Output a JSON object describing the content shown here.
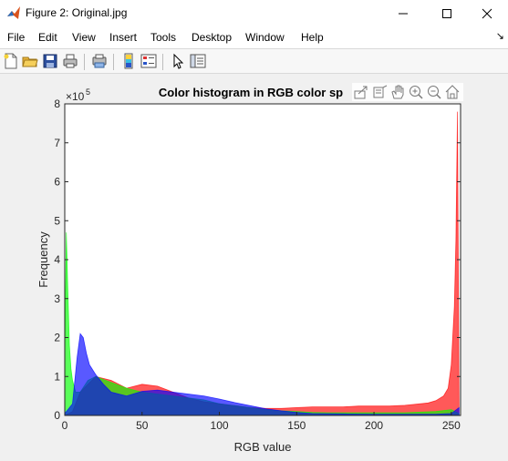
{
  "window": {
    "title": "Figure 2: Original.jpg"
  },
  "menu": [
    "File",
    "Edit",
    "View",
    "Insert",
    "Tools",
    "Desktop",
    "Window",
    "Help"
  ],
  "toolbar_icons": [
    "new-figure-icon",
    "open-file-icon",
    "save-icon",
    "print-icon",
    "print-preview-icon",
    "link-plot-icon",
    "insert-colorbar-icon",
    "insert-legend-icon",
    "edit-plot-icon",
    "property-inspector-icon"
  ],
  "axes_toolbar_icons": [
    "export-icon",
    "brush-icon",
    "pan-icon",
    "zoom-in-icon",
    "zoom-out-icon",
    "home-icon"
  ],
  "colors": {
    "red": "#ff0000",
    "green": "#00ff00",
    "blue": "#0000ff",
    "overlay_alpha": 0.5
  },
  "chart_data": {
    "type": "area",
    "title": "Color histogram in RGB color sp",
    "xlabel": "RGB value",
    "ylabel": "Frequency",
    "exponent_label": "×10",
    "exponent_power": "5",
    "xlim": [
      0,
      256
    ],
    "ylim": [
      0,
      8
    ],
    "xticks": [
      "0",
      "50",
      "100",
      "150",
      "200",
      "250"
    ],
    "yticks": [
      "0",
      "1",
      "2",
      "3",
      "4",
      "5",
      "6",
      "7",
      "8"
    ],
    "series": [
      {
        "color": "#ff0000",
        "x": [
          0,
          5,
          10,
          20,
          30,
          40,
          50,
          60,
          70,
          80,
          90,
          100,
          110,
          120,
          130,
          140,
          150,
          160,
          170,
          180,
          190,
          200,
          210,
          220,
          230,
          235,
          240,
          245,
          248,
          250,
          252,
          253,
          254,
          255
        ],
        "values": [
          0,
          0.1,
          0.6,
          1.0,
          0.9,
          0.7,
          0.8,
          0.75,
          0.6,
          0.45,
          0.35,
          0.3,
          0.25,
          0.2,
          0.18,
          0.18,
          0.2,
          0.22,
          0.22,
          0.22,
          0.24,
          0.24,
          0.24,
          0.26,
          0.3,
          0.32,
          0.38,
          0.5,
          0.7,
          1.3,
          2.8,
          4.5,
          7.8,
          0.3
        ]
      },
      {
        "color": "#00ff00",
        "x": [
          0,
          1,
          2,
          3,
          4,
          5,
          7,
          10,
          15,
          20,
          30,
          40,
          50,
          60,
          70,
          80,
          90,
          100,
          110,
          120,
          130,
          140,
          150,
          160,
          170,
          180,
          200,
          220,
          240,
          250,
          255
        ],
        "values": [
          1.5,
          4.7,
          3.2,
          1.8,
          1.2,
          0.9,
          0.6,
          0.6,
          0.9,
          1.0,
          0.85,
          0.7,
          0.6,
          0.55,
          0.5,
          0.45,
          0.4,
          0.3,
          0.25,
          0.2,
          0.15,
          0.12,
          0.1,
          0.08,
          0.07,
          0.07,
          0.07,
          0.07,
          0.1,
          0.15,
          0.05
        ]
      },
      {
        "color": "#0000ff",
        "x": [
          0,
          5,
          8,
          10,
          12,
          14,
          16,
          20,
          25,
          30,
          35,
          40,
          50,
          60,
          70,
          80,
          90,
          100,
          110,
          120,
          130,
          140,
          150,
          160,
          180,
          200,
          220,
          240,
          250,
          255
        ],
        "values": [
          0.05,
          0.3,
          1.5,
          2.1,
          2.0,
          1.6,
          1.3,
          1.05,
          0.8,
          0.6,
          0.55,
          0.5,
          0.62,
          0.65,
          0.6,
          0.55,
          0.5,
          0.42,
          0.33,
          0.25,
          0.17,
          0.12,
          0.08,
          0.05,
          0.04,
          0.03,
          0.03,
          0.03,
          0.05,
          0.2
        ]
      }
    ]
  }
}
